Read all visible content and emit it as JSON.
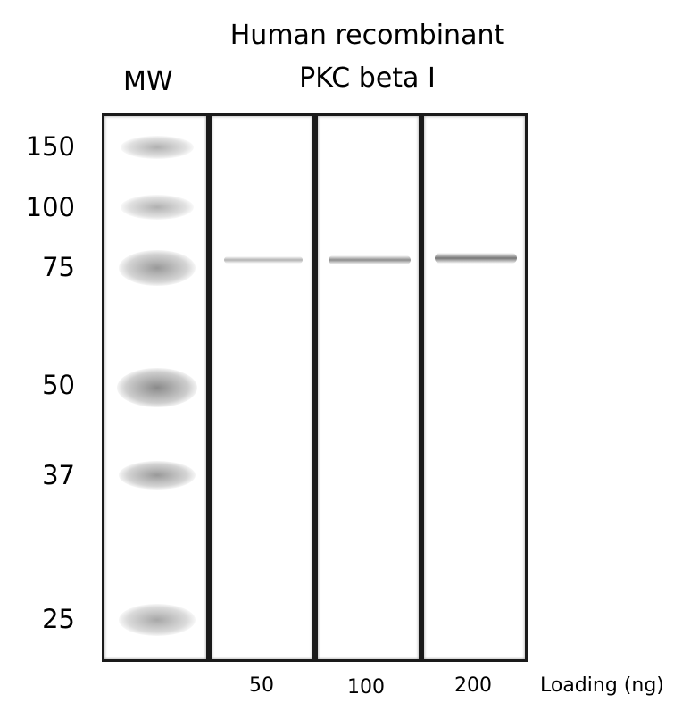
{
  "header": {
    "title_line1": "Human recombinant",
    "title_line2": "PKC beta I",
    "mw_label": "MW"
  },
  "mw_ticks": [
    {
      "label": "150",
      "kda": 150
    },
    {
      "label": "100",
      "kda": 100
    },
    {
      "label": "75",
      "kda": 75
    },
    {
      "label": "50",
      "kda": 50
    },
    {
      "label": "37",
      "kda": 37
    },
    {
      "label": "25",
      "kda": 25
    }
  ],
  "lanes": [
    {
      "id": "mw",
      "loading": ""
    },
    {
      "id": "s1",
      "loading": "50",
      "band_kda": 77,
      "intensity": 0.35
    },
    {
      "id": "s2",
      "loading": "100",
      "band_kda": 77,
      "intensity": 0.6
    },
    {
      "id": "s3",
      "loading": "200",
      "band_kda": 77,
      "intensity": 0.8
    }
  ],
  "loading_axis_label": "Loading (ng)"
}
